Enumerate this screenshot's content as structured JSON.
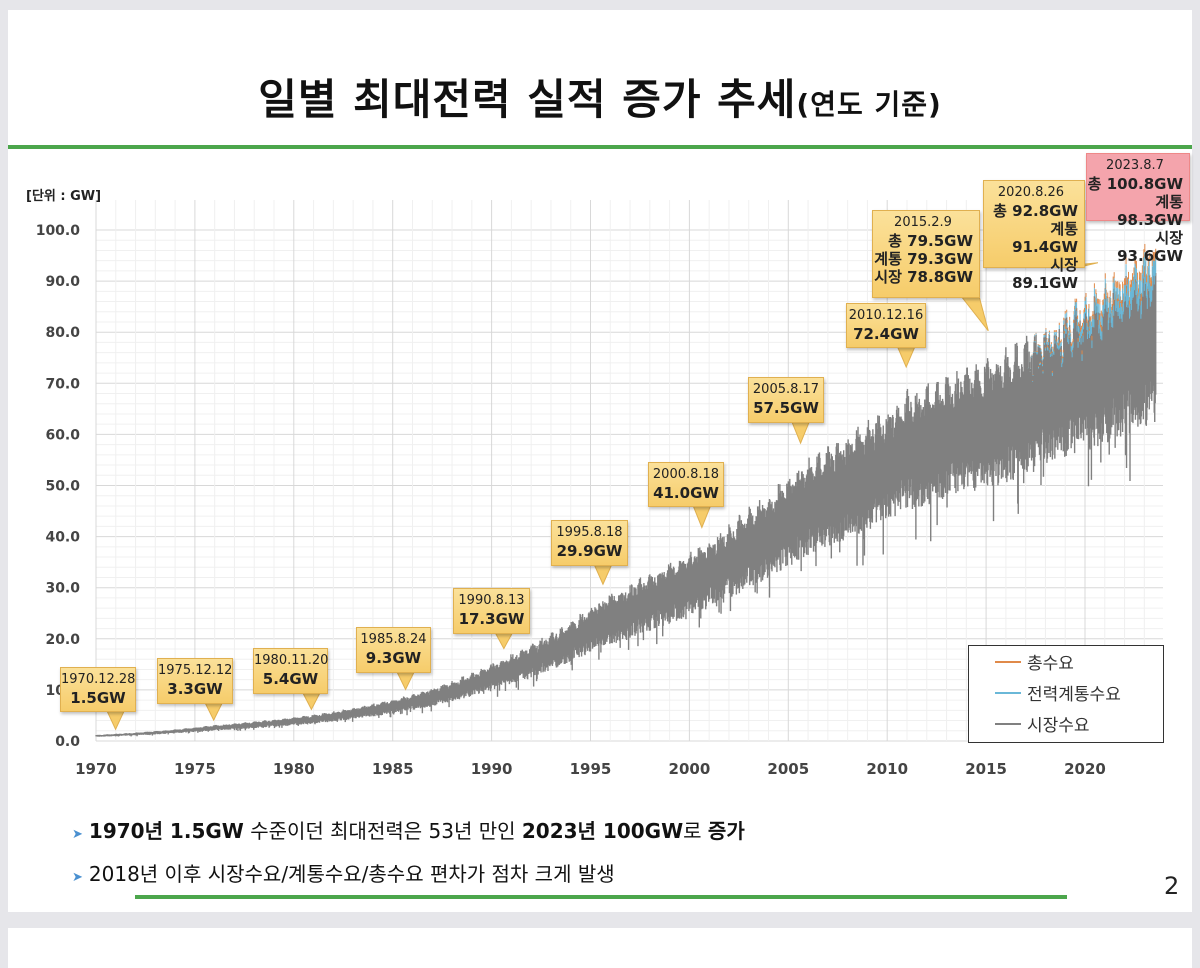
{
  "title": {
    "main": "일별 최대전력 실적 증가 추세",
    "sub": "(연도 기준)"
  },
  "page_number": "2",
  "bullets": [
    {
      "parts": [
        {
          "t": "1970년 1.5GW",
          "b": true
        },
        {
          "t": " 수준이던 최대전력은 53년 만인 ",
          "b": false
        },
        {
          "t": "2023년 100GW",
          "b": true
        },
        {
          "t": "로 ",
          "b": false
        },
        {
          "t": "증가",
          "b": true
        }
      ]
    },
    {
      "parts": [
        {
          "t": "2018년 이후 시장수요/계통수요/총수요 편차가 점차 크게 발생",
          "b": false
        }
      ]
    }
  ],
  "chart_data": {
    "type": "line",
    "ylabel": "[단위 : GW]",
    "xlim": [
      1970,
      2023.7
    ],
    "ylim": [
      0,
      100
    ],
    "xticks": [
      "1970",
      "1975",
      "1980",
      "1985",
      "1990",
      "1995",
      "2000",
      "2005",
      "2010",
      "2015",
      "2020"
    ],
    "yticks": [
      "0.0",
      "10.0",
      "20.0",
      "30.0",
      "40.0",
      "50.0",
      "60.0",
      "70.0",
      "80.0",
      "90.0",
      "100.0"
    ],
    "grid": true,
    "legend_position": "bottom-right",
    "series": [
      {
        "name": "총수요",
        "color": "#e08a4a"
      },
      {
        "name": "전력계통수요",
        "color": "#6ab8d8"
      },
      {
        "name": "시장수요",
        "color": "#808080"
      }
    ],
    "annotations": [
      {
        "date": "1970.12.28",
        "x": 1970.99,
        "lines": [
          "1.5GW"
        ],
        "y": 1.5
      },
      {
        "date": "1975.12.12",
        "x": 1975.95,
        "lines": [
          "3.3GW"
        ],
        "y": 3.3
      },
      {
        "date": "1980.11.20",
        "x": 1980.89,
        "lines": [
          "5.4GW"
        ],
        "y": 5.4
      },
      {
        "date": "1985.8.24",
        "x": 1985.65,
        "lines": [
          "9.3GW"
        ],
        "y": 9.3
      },
      {
        "date": "1990.8.13",
        "x": 1990.62,
        "lines": [
          "17.3GW"
        ],
        "y": 17.3
      },
      {
        "date": "1995.8.18",
        "x": 1995.63,
        "lines": [
          "29.9GW"
        ],
        "y": 29.9
      },
      {
        "date": "2000.8.18",
        "x": 2000.63,
        "lines": [
          "41.0GW"
        ],
        "y": 41.0
      },
      {
        "date": "2005.8.17",
        "x": 2005.62,
        "lines": [
          "57.5GW"
        ],
        "y": 57.5
      },
      {
        "date": "2010.12.16",
        "x": 2010.96,
        "lines": [
          "72.4GW"
        ],
        "y": 72.4
      },
      {
        "date": "2015.2.9",
        "x": 2015.11,
        "lines": [
          "총 79.5GW",
          "계통 79.3GW",
          "시장 78.8GW"
        ],
        "y": 79.5
      },
      {
        "date": "2020.8.26",
        "x": 2020.65,
        "lines": [
          "총 92.8GW",
          "계통 91.4GW",
          "시장 89.1GW"
        ],
        "y": 92.8
      },
      {
        "date": "2023.8.7",
        "x": 2023.6,
        "lines": [
          "총 100.8GW",
          "계통 98.3GW",
          "시장 93.6GW"
        ],
        "y": 100.8,
        "highlight": true
      }
    ]
  }
}
